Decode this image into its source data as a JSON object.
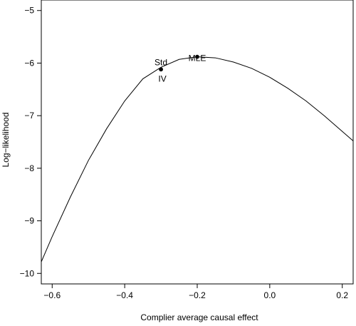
{
  "chart_data": {
    "type": "line",
    "title": "",
    "xlabel": "Complier average causal effect",
    "ylabel": "Log−likelihood",
    "xlim": [
      -0.63,
      0.23
    ],
    "ylim": [
      -10.2,
      -4.8
    ],
    "xticks": [
      -0.6,
      -0.4,
      -0.2,
      0.0,
      0.2
    ],
    "xtick_labels": [
      "−0.6",
      "−0.4",
      "−0.2",
      "0.0",
      "0.2"
    ],
    "yticks": [
      -5,
      -6,
      -7,
      -8,
      -9,
      -10
    ],
    "ytick_labels": [
      "−5",
      "−6",
      "−7",
      "−8",
      "−9",
      "−10"
    ],
    "grid": false,
    "legend": "none",
    "series": [
      {
        "x": [
          -0.63,
          -0.6,
          -0.55,
          -0.5,
          -0.45,
          -0.4,
          -0.35,
          -0.3,
          -0.25,
          -0.2,
          -0.15,
          -0.1,
          -0.05,
          0.0,
          0.05,
          0.1,
          0.15,
          0.2,
          0.23
        ],
        "y": [
          -9.78,
          -9.3,
          -8.55,
          -7.85,
          -7.25,
          -6.72,
          -6.3,
          -6.08,
          -5.93,
          -5.88,
          -5.9,
          -5.98,
          -6.1,
          -6.27,
          -6.48,
          -6.72,
          -7.0,
          -7.3,
          -7.48
        ]
      }
    ],
    "points": [
      {
        "label": "MLE",
        "x": -0.2,
        "y": -5.88
      },
      {
        "label": "Std",
        "x": -0.3,
        "y": -6.12
      },
      {
        "label": "IV",
        "x": -0.3,
        "y": -6.12
      }
    ]
  }
}
